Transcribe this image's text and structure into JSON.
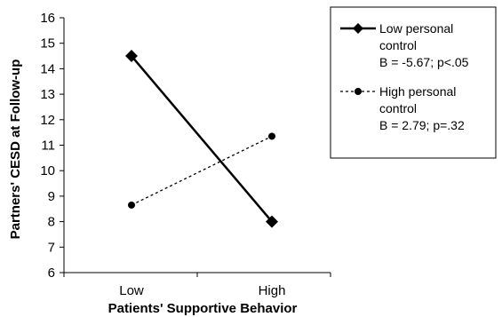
{
  "chart_data": {
    "type": "line",
    "categories": [
      "Low",
      "High"
    ],
    "ylim": [
      6,
      16
    ],
    "yticks": [
      6,
      7,
      8,
      9,
      10,
      11,
      12,
      13,
      14,
      15,
      16
    ],
    "xlabel": "Patients' Supportive Behavior",
    "ylabel": "Partners' CESD at Follow-up",
    "grid": false,
    "legend_position": "top-right",
    "series": [
      {
        "name_lines": [
          "Low personal",
          "control",
          "B = -5.67; p<.05"
        ],
        "values": [
          14.5,
          8.0
        ],
        "style": "solid",
        "marker": "diamond",
        "color": "#000000"
      },
      {
        "name_lines": [
          "High personal",
          "control",
          "B = 2.79; p=.32"
        ],
        "values": [
          8.65,
          11.35
        ],
        "style": "dotted",
        "marker": "circle",
        "color": "#000000"
      }
    ]
  }
}
